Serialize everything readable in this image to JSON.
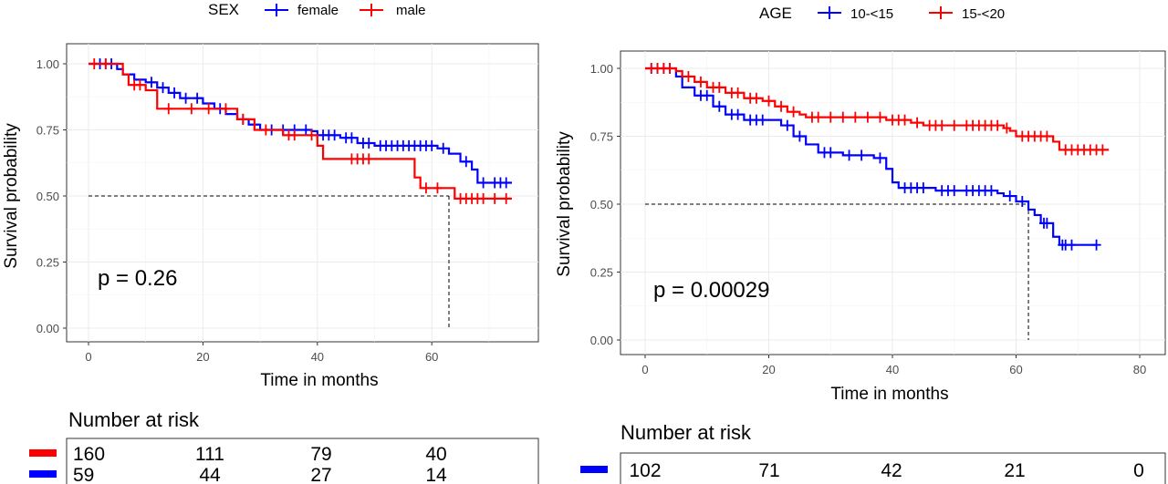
{
  "chart_data": [
    {
      "type": "line",
      "legend_title": "SEX",
      "legend_position": "top",
      "xlabel": "Time in months",
      "ylabel": "Survival probability",
      "xlim": [
        0,
        75
      ],
      "ylim": [
        0,
        1
      ],
      "x_ticks": [
        "0",
        "20",
        "40",
        "60"
      ],
      "y_ticks": [
        "0.00",
        "0.25",
        "0.50",
        "0.75",
        "1.00"
      ],
      "grid": true,
      "pvalue": "p = 0.26",
      "median_line": {
        "y": 0.5,
        "x": 63
      },
      "series": [
        {
          "name": "female",
          "color": "#0000ff",
          "steps": [
            [
              0,
              1.0
            ],
            [
              5,
              0.98
            ],
            [
              6,
              0.96
            ],
            [
              8,
              0.94
            ],
            [
              10,
              0.93
            ],
            [
              12,
              0.91
            ],
            [
              14,
              0.89
            ],
            [
              16,
              0.87
            ],
            [
              20,
              0.85
            ],
            [
              22,
              0.83
            ],
            [
              24,
              0.81
            ],
            [
              26,
              0.79
            ],
            [
              28,
              0.77
            ],
            [
              30,
              0.75
            ],
            [
              39,
              0.745
            ],
            [
              40,
              0.73
            ],
            [
              44,
              0.72
            ],
            [
              47,
              0.7
            ],
            [
              50,
              0.69
            ],
            [
              61,
              0.68
            ],
            [
              63,
              0.66
            ],
            [
              65,
              0.63
            ],
            [
              67,
              0.6
            ],
            [
              68,
              0.55
            ],
            [
              74,
              0.55
            ]
          ],
          "censors": [
            [
              2,
              1.0
            ],
            [
              3,
              1.0
            ],
            [
              4,
              1.0
            ],
            [
              11,
              0.93
            ],
            [
              13,
              0.91
            ],
            [
              15,
              0.89
            ],
            [
              17,
              0.87
            ],
            [
              19,
              0.87
            ],
            [
              23,
              0.83
            ],
            [
              27,
              0.79
            ],
            [
              29,
              0.77
            ],
            [
              32,
              0.75
            ],
            [
              34,
              0.75
            ],
            [
              36,
              0.75
            ],
            [
              38,
              0.75
            ],
            [
              41,
              0.73
            ],
            [
              42,
              0.73
            ],
            [
              43,
              0.73
            ],
            [
              45,
              0.72
            ],
            [
              46,
              0.72
            ],
            [
              48,
              0.7
            ],
            [
              49,
              0.7
            ],
            [
              51,
              0.69
            ],
            [
              52,
              0.69
            ],
            [
              53,
              0.69
            ],
            [
              54,
              0.69
            ],
            [
              55,
              0.69
            ],
            [
              56,
              0.69
            ],
            [
              57,
              0.69
            ],
            [
              58,
              0.69
            ],
            [
              59,
              0.69
            ],
            [
              60,
              0.69
            ],
            [
              62,
              0.68
            ],
            [
              66,
              0.63
            ],
            [
              69,
              0.55
            ],
            [
              71,
              0.55
            ],
            [
              72,
              0.55
            ],
            [
              73,
              0.55
            ]
          ]
        },
        {
          "name": "male",
          "color": "#ff0000",
          "steps": [
            [
              0,
              1.0
            ],
            [
              6,
              0.96
            ],
            [
              7,
              0.92
            ],
            [
              10,
              0.9
            ],
            [
              12,
              0.83
            ],
            [
              16,
              0.83
            ],
            [
              22,
              0.83
            ],
            [
              26,
              0.79
            ],
            [
              29,
              0.75
            ],
            [
              34,
              0.73
            ],
            [
              38,
              0.73
            ],
            [
              40,
              0.69
            ],
            [
              41,
              0.64
            ],
            [
              55,
              0.64
            ],
            [
              57,
              0.57
            ],
            [
              58,
              0.53
            ],
            [
              62,
              0.53
            ],
            [
              64,
              0.49
            ],
            [
              74,
              0.49
            ]
          ],
          "censors": [
            [
              1,
              1.0
            ],
            [
              3,
              1.0
            ],
            [
              8,
              0.92
            ],
            [
              9,
              0.92
            ],
            [
              14,
              0.83
            ],
            [
              18,
              0.83
            ],
            [
              21,
              0.83
            ],
            [
              24,
              0.83
            ],
            [
              27,
              0.79
            ],
            [
              31,
              0.75
            ],
            [
              35,
              0.73
            ],
            [
              36,
              0.73
            ],
            [
              39,
              0.73
            ],
            [
              46,
              0.64
            ],
            [
              47,
              0.64
            ],
            [
              48,
              0.64
            ],
            [
              49,
              0.64
            ],
            [
              59,
              0.53
            ],
            [
              61,
              0.53
            ],
            [
              65,
              0.49
            ],
            [
              66,
              0.49
            ],
            [
              67,
              0.49
            ],
            [
              68,
              0.49
            ],
            [
              69,
              0.49
            ],
            [
              71,
              0.49
            ],
            [
              73,
              0.49
            ]
          ]
        }
      ],
      "risk_table": {
        "title": "Number at risk",
        "rows": [
          {
            "color": "#ff0000",
            "values": [
              "160",
              "111",
              "79",
              "40"
            ]
          },
          {
            "color": "#0000ff",
            "values": [
              "59",
              "44",
              "27",
              "14"
            ]
          }
        ]
      }
    },
    {
      "type": "line",
      "legend_title": "AGE",
      "legend_position": "top",
      "xlabel": "Time in months",
      "ylabel": "Survival probability",
      "xlim": [
        0,
        80
      ],
      "ylim": [
        0,
        1
      ],
      "x_ticks": [
        "0",
        "20",
        "40",
        "60",
        "80"
      ],
      "y_ticks": [
        "0.00",
        "0.25",
        "0.50",
        "0.75",
        "1.00"
      ],
      "grid": true,
      "pvalue": "p = 0.00029",
      "median_line": {
        "y": 0.5,
        "x": 62
      },
      "series": [
        {
          "name": "10-<15",
          "color": "#0000ff",
          "steps": [
            [
              0,
              1.0
            ],
            [
              5,
              0.97
            ],
            [
              6,
              0.93
            ],
            [
              8,
              0.9
            ],
            [
              11,
              0.86
            ],
            [
              13,
              0.83
            ],
            [
              16,
              0.81
            ],
            [
              20,
              0.81
            ],
            [
              22,
              0.79
            ],
            [
              24,
              0.75
            ],
            [
              26,
              0.72
            ],
            [
              28,
              0.69
            ],
            [
              32,
              0.68
            ],
            [
              37,
              0.67
            ],
            [
              39,
              0.63
            ],
            [
              40,
              0.58
            ],
            [
              41,
              0.56
            ],
            [
              47,
              0.55
            ],
            [
              57,
              0.54
            ],
            [
              58,
              0.53
            ],
            [
              60,
              0.51
            ],
            [
              62,
              0.48
            ],
            [
              63,
              0.46
            ],
            [
              64,
              0.43
            ],
            [
              66,
              0.38
            ],
            [
              67,
              0.35
            ],
            [
              73,
              0.35
            ]
          ],
          "censors": [
            [
              1,
              1.0
            ],
            [
              2,
              1.0
            ],
            [
              3,
              1.0
            ],
            [
              4,
              1.0
            ],
            [
              9,
              0.9
            ],
            [
              10,
              0.9
            ],
            [
              12,
              0.86
            ],
            [
              14,
              0.83
            ],
            [
              15,
              0.83
            ],
            [
              17,
              0.81
            ],
            [
              18,
              0.81
            ],
            [
              19,
              0.81
            ],
            [
              23,
              0.79
            ],
            [
              25,
              0.75
            ],
            [
              29,
              0.69
            ],
            [
              30,
              0.69
            ],
            [
              33,
              0.68
            ],
            [
              35,
              0.68
            ],
            [
              38,
              0.67
            ],
            [
              42,
              0.56
            ],
            [
              43,
              0.56
            ],
            [
              44,
              0.56
            ],
            [
              45,
              0.56
            ],
            [
              48,
              0.55
            ],
            [
              49,
              0.55
            ],
            [
              50,
              0.55
            ],
            [
              52,
              0.55
            ],
            [
              53,
              0.55
            ],
            [
              54,
              0.55
            ],
            [
              55,
              0.55
            ],
            [
              56,
              0.55
            ],
            [
              59,
              0.53
            ],
            [
              61,
              0.51
            ],
            [
              64.5,
              0.43
            ],
            [
              65,
              0.43
            ],
            [
              67.5,
              0.35
            ],
            [
              68,
              0.35
            ],
            [
              69,
              0.35
            ],
            [
              73,
              0.35
            ]
          ]
        },
        {
          "name": "15-<20",
          "color": "#ff0000",
          "steps": [
            [
              0,
              1.0
            ],
            [
              5,
              0.99
            ],
            [
              6,
              0.97
            ],
            [
              8,
              0.95
            ],
            [
              10,
              0.93
            ],
            [
              13,
              0.91
            ],
            [
              16,
              0.89
            ],
            [
              19,
              0.88
            ],
            [
              21,
              0.86
            ],
            [
              23,
              0.84
            ],
            [
              25,
              0.83
            ],
            [
              26,
              0.82
            ],
            [
              39,
              0.81
            ],
            [
              43,
              0.8
            ],
            [
              45,
              0.79
            ],
            [
              58,
              0.78
            ],
            [
              59,
              0.77
            ],
            [
              60,
              0.75
            ],
            [
              66,
              0.73
            ],
            [
              67,
              0.7
            ],
            [
              75,
              0.7
            ]
          ],
          "censors": [
            [
              1,
              1.0
            ],
            [
              2,
              1.0
            ],
            [
              3,
              1.0
            ],
            [
              4,
              1.0
            ],
            [
              7,
              0.97
            ],
            [
              9,
              0.95
            ],
            [
              11,
              0.93
            ],
            [
              12,
              0.93
            ],
            [
              14,
              0.91
            ],
            [
              15,
              0.91
            ],
            [
              17,
              0.89
            ],
            [
              18,
              0.89
            ],
            [
              20,
              0.88
            ],
            [
              22,
              0.86
            ],
            [
              24,
              0.84
            ],
            [
              27,
              0.82
            ],
            [
              28,
              0.82
            ],
            [
              30,
              0.82
            ],
            [
              32,
              0.82
            ],
            [
              34,
              0.82
            ],
            [
              36,
              0.82
            ],
            [
              38,
              0.82
            ],
            [
              40,
              0.81
            ],
            [
              41,
              0.81
            ],
            [
              42,
              0.81
            ],
            [
              44,
              0.8
            ],
            [
              46,
              0.79
            ],
            [
              47,
              0.79
            ],
            [
              48,
              0.79
            ],
            [
              50,
              0.79
            ],
            [
              52,
              0.79
            ],
            [
              53,
              0.79
            ],
            [
              54,
              0.79
            ],
            [
              55,
              0.79
            ],
            [
              56,
              0.79
            ],
            [
              57,
              0.79
            ],
            [
              58.5,
              0.78
            ],
            [
              61,
              0.75
            ],
            [
              62,
              0.75
            ],
            [
              63,
              0.75
            ],
            [
              64,
              0.75
            ],
            [
              65,
              0.75
            ],
            [
              68,
              0.7
            ],
            [
              69,
              0.7
            ],
            [
              70,
              0.7
            ],
            [
              71,
              0.7
            ],
            [
              72,
              0.7
            ],
            [
              73,
              0.7
            ],
            [
              74,
              0.7
            ]
          ]
        }
      ],
      "risk_table": {
        "title": "Number at risk",
        "rows": [
          {
            "color": "#0000ff",
            "values": [
              "102",
              "71",
              "42",
              "21",
              "0"
            ]
          }
        ]
      }
    }
  ]
}
